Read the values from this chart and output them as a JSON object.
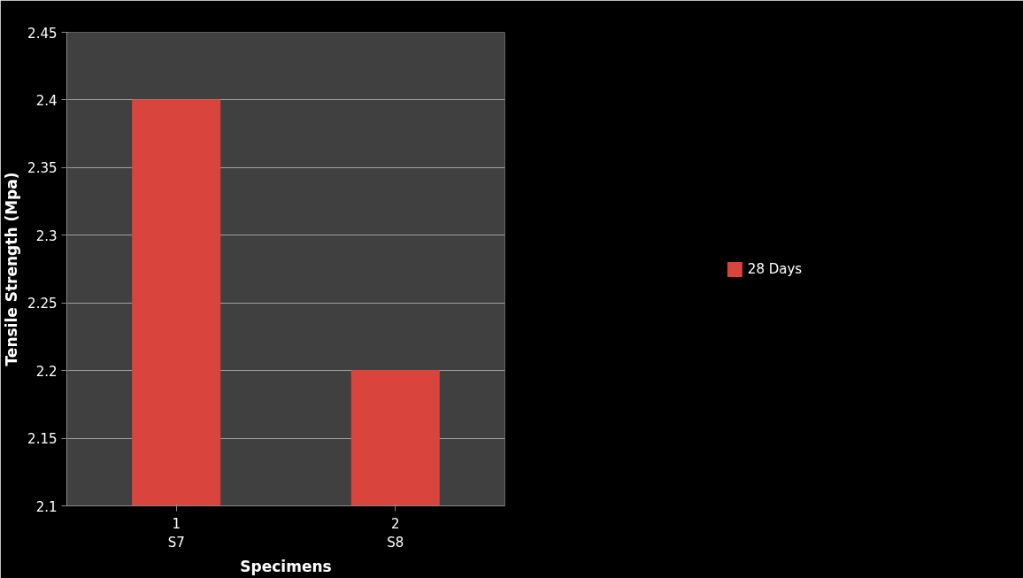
{
  "chart_data": {
    "type": "bar",
    "xlabel": "Specimens",
    "ylabel": "Tensile Strength (Mpa)",
    "categories": [
      "1\nS7",
      "2\nS8"
    ],
    "series": [
      {
        "name": "28 Days",
        "color": "#d9443c",
        "values": [
          2.4,
          2.2
        ]
      }
    ],
    "ylim": [
      2.1,
      2.45
    ],
    "yticks": [
      2.1,
      2.15,
      2.2,
      2.25,
      2.3,
      2.35,
      2.4,
      2.45
    ],
    "grid": "y",
    "legend": "right"
  }
}
